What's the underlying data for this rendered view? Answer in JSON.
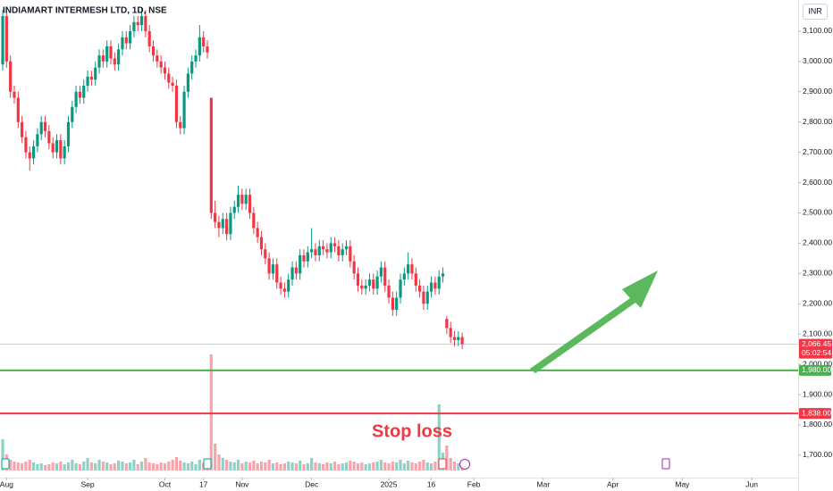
{
  "chart_data": {
    "type": "candlestick",
    "title": "INDIAMART INTERMESH LTD, 1D, NSE",
    "currency": "INR",
    "annotation": "Stop loss",
    "up_color": "#089981",
    "down_color": "#f23645",
    "xlim": [
      -0.7,
      206
    ],
    "ylim": [
      1626,
      3203
    ],
    "volume_lim": [
      0,
      140
    ],
    "xticks": [
      {
        "value": 1,
        "label": "Aug"
      },
      {
        "value": 22,
        "label": "Sep"
      },
      {
        "value": 42,
        "label": "Oct"
      },
      {
        "value": 52,
        "label": "17"
      },
      {
        "value": 62,
        "label": "Nov"
      },
      {
        "value": 80,
        "label": "Dec"
      },
      {
        "value": 100,
        "label": "2025"
      },
      {
        "value": 111,
        "label": "16"
      },
      {
        "value": 122,
        "label": "Feb"
      },
      {
        "value": 140,
        "label": "Mar"
      },
      {
        "value": 158,
        "label": "Apr"
      },
      {
        "value": 176,
        "label": "May"
      },
      {
        "value": 194,
        "label": "Jun"
      }
    ],
    "yticks": [
      {
        "value": 1700,
        "label": "1,700.00"
      },
      {
        "value": 1800,
        "label": "1,800.00"
      },
      {
        "value": 1900,
        "label": "1,900.00"
      },
      {
        "value": 2000,
        "label": "2,000.00"
      },
      {
        "value": 2100,
        "label": "2,100.00"
      },
      {
        "value": 2200,
        "label": "2,200.00"
      },
      {
        "value": 2300,
        "label": "2,300.00"
      },
      {
        "value": 2400,
        "label": "2,400.00"
      },
      {
        "value": 2500,
        "label": "2,500.00"
      },
      {
        "value": 2600,
        "label": "2,600.00"
      },
      {
        "value": 2700,
        "label": "2,700.00"
      },
      {
        "value": 2800,
        "label": "2,800.00"
      },
      {
        "value": 2900,
        "label": "2,900.00"
      },
      {
        "value": 3000,
        "label": "3,000.00"
      },
      {
        "value": 3100,
        "label": "3,100.00"
      }
    ],
    "hlines": [
      {
        "value": 1980,
        "label": "1,980.00",
        "color": "#4caf50"
      },
      {
        "value": 1838,
        "label": "1,838.00",
        "color": "#f23645"
      }
    ],
    "last_price": {
      "value": 2066.45,
      "label": "2,066.45"
    },
    "countdown": "05:02:54",
    "open": [
      2990,
      3150,
      3000,
      2900,
      2880,
      2800,
      2750,
      2700,
      2680,
      2720,
      2760,
      2800,
      2770,
      2730,
      2700,
      2740,
      2680,
      2720,
      2800,
      2850,
      2900,
      2880,
      2920,
      2950,
      2940,
      2980,
      3020,
      3000,
      3050,
      3010,
      2990,
      3040,
      3080,
      3060,
      3100,
      3130,
      3120,
      3150,
      3100,
      3050,
      3020,
      3000,
      2980,
      2960,
      2930,
      2920,
      2800,
      2780,
      2900,
      2960,
      3000,
      3020,
      3080,
      3050,
      2880,
      2500,
      2470,
      2450,
      2480,
      2430,
      2500,
      2520,
      2560,
      2530,
      2560,
      2500,
      2450,
      2420,
      2380,
      2350,
      2300,
      2330,
      2270,
      2250,
      2240,
      2280,
      2320,
      2300,
      2360,
      2340,
      2370,
      2380,
      2360,
      2390,
      2380,
      2370,
      2400,
      2390,
      2360,
      2380,
      2390,
      2340,
      2300,
      2260,
      2250,
      2260,
      2280,
      2250,
      2290,
      2320,
      2260,
      2220,
      2180,
      2220,
      2280,
      2300,
      2330,
      2300,
      2260,
      2240,
      2200,
      2240,
      2270,
      2250,
      2290,
      2150,
      2120,
      2090,
      2080,
      2090
    ],
    "high": [
      3170,
      3170,
      3020,
      2920,
      2900,
      2820,
      2770,
      2720,
      2740,
      2780,
      2820,
      2820,
      2790,
      2750,
      2760,
      2760,
      2740,
      2820,
      2870,
      2920,
      2920,
      2940,
      2970,
      2970,
      3000,
      3040,
      3040,
      3070,
      3070,
      3030,
      3060,
      3100,
      3100,
      3120,
      3150,
      3150,
      3180,
      3170,
      3120,
      3070,
      3040,
      3020,
      3000,
      2980,
      2950,
      2940,
      2820,
      2920,
      2980,
      3020,
      3040,
      3120,
      3100,
      3070,
      2880,
      2540,
      2490,
      2500,
      2500,
      2520,
      2540,
      2590,
      2580,
      2580,
      2580,
      2520,
      2470,
      2440,
      2400,
      2370,
      2350,
      2350,
      2290,
      2270,
      2300,
      2340,
      2340,
      2380,
      2380,
      2390,
      2450,
      2400,
      2410,
      2410,
      2400,
      2420,
      2420,
      2410,
      2400,
      2410,
      2410,
      2360,
      2320,
      2280,
      2280,
      2300,
      2300,
      2310,
      2340,
      2340,
      2280,
      2240,
      2240,
      2300,
      2320,
      2370,
      2350,
      2320,
      2280,
      2260,
      2260,
      2290,
      2290,
      2310,
      2320,
      2160,
      2140,
      2110,
      2110,
      2105
    ],
    "low": [
      2970,
      2980,
      2880,
      2860,
      2780,
      2730,
      2680,
      2640,
      2660,
      2700,
      2740,
      2750,
      2710,
      2680,
      2680,
      2660,
      2660,
      2700,
      2780,
      2830,
      2860,
      2860,
      2900,
      2920,
      2920,
      2960,
      2980,
      2980,
      2990,
      2970,
      2970,
      3020,
      3040,
      3040,
      3080,
      3100,
      3100,
      3080,
      3030,
      3000,
      2980,
      2960,
      2940,
      2910,
      2900,
      2780,
      2760,
      2760,
      2880,
      2940,
      2980,
      3000,
      3030,
      3010,
      2480,
      2450,
      2420,
      2430,
      2410,
      2410,
      2480,
      2500,
      2510,
      2510,
      2480,
      2430,
      2400,
      2360,
      2330,
      2280,
      2280,
      2250,
      2230,
      2220,
      2220,
      2260,
      2280,
      2280,
      2320,
      2320,
      2350,
      2340,
      2340,
      2360,
      2350,
      2350,
      2370,
      2340,
      2340,
      2360,
      2320,
      2280,
      2240,
      2230,
      2230,
      2240,
      2230,
      2230,
      2270,
      2240,
      2200,
      2160,
      2160,
      2200,
      2260,
      2280,
      2280,
      2240,
      2220,
      2180,
      2180,
      2220,
      2230,
      2230,
      2270,
      2100,
      2070,
      2060,
      2060,
      2050
    ],
    "close": [
      3150,
      3000,
      2900,
      2880,
      2800,
      2750,
      2700,
      2680,
      2720,
      2760,
      2800,
      2770,
      2730,
      2700,
      2740,
      2680,
      2720,
      2800,
      2850,
      2900,
      2880,
      2920,
      2950,
      2940,
      2980,
      3020,
      3000,
      3050,
      3010,
      2990,
      3040,
      3080,
      3060,
      3100,
      3130,
      3120,
      3150,
      3100,
      3050,
      3020,
      3000,
      2980,
      2960,
      2930,
      2920,
      2800,
      2780,
      2900,
      2960,
      3000,
      3020,
      3080,
      3050,
      3030,
      2500,
      2470,
      2450,
      2480,
      2430,
      2500,
      2520,
      2560,
      2530,
      2560,
      2500,
      2450,
      2420,
      2380,
      2350,
      2300,
      2330,
      2270,
      2250,
      2240,
      2280,
      2320,
      2300,
      2360,
      2340,
      2370,
      2380,
      2360,
      2390,
      2380,
      2370,
      2400,
      2390,
      2360,
      2380,
      2390,
      2340,
      2300,
      2260,
      2250,
      2260,
      2280,
      2250,
      2290,
      2320,
      2260,
      2220,
      2180,
      2220,
      2280,
      2300,
      2330,
      2300,
      2260,
      2240,
      2200,
      2240,
      2270,
      2250,
      2290,
      2300,
      2120,
      2090,
      2080,
      2090,
      2066.45
    ],
    "volume": [
      35,
      18,
      12,
      10,
      9,
      8,
      10,
      12,
      9,
      7,
      8,
      6,
      7,
      9,
      8,
      10,
      7,
      9,
      12,
      8,
      7,
      10,
      14,
      9,
      8,
      12,
      10,
      9,
      7,
      8,
      11,
      10,
      8,
      9,
      12,
      7,
      10,
      14,
      9,
      8,
      7,
      9,
      8,
      10,
      12,
      15,
      11,
      9,
      8,
      10,
      7,
      12,
      9,
      8,
      130,
      30,
      18,
      14,
      12,
      10,
      9,
      12,
      8,
      10,
      9,
      11,
      8,
      10,
      9,
      12,
      8,
      9,
      7,
      8,
      10,
      9,
      8,
      11,
      7,
      8,
      14,
      9,
      8,
      7,
      9,
      8,
      10,
      7,
      8,
      9,
      11,
      10,
      8,
      9,
      7,
      8,
      9,
      10,
      12,
      9,
      8,
      10,
      9,
      12,
      8,
      11,
      9,
      8,
      10,
      12,
      9,
      8,
      10,
      74,
      20,
      28,
      14,
      10,
      8,
      6
    ]
  }
}
